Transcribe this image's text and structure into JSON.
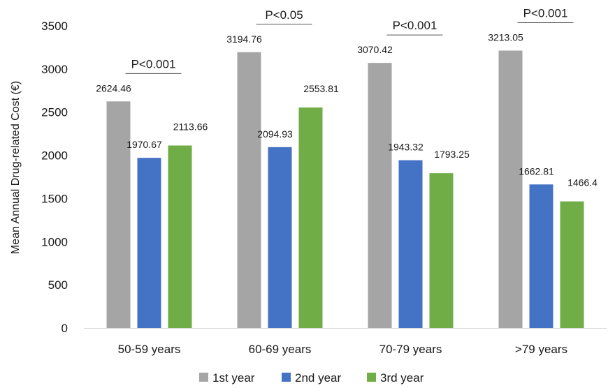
{
  "chart_data": {
    "type": "bar",
    "ylabel": "Mean Annual Drug-related Cost (€)",
    "ylim": [
      0,
      3500
    ],
    "yticks": [
      0,
      500,
      1000,
      1500,
      2000,
      2500,
      3000,
      3500
    ],
    "grid": false,
    "legend_position": "bottom",
    "categories": [
      "50-59 years",
      "60-69 years",
      "70-79 years",
      ">79 years"
    ],
    "series": [
      {
        "name": "1st year",
        "color": "#a5a5a5",
        "values": [
          2624.46,
          3194.76,
          3070.42,
          3213.05
        ],
        "labels": [
          "2624.46",
          "3194.76",
          "3070.42",
          "3213.05"
        ]
      },
      {
        "name": "2nd year",
        "color": "#4472c4",
        "values": [
          1970.67,
          2094.93,
          1943.32,
          1662.81
        ],
        "labels": [
          "1970.67",
          "2094.93",
          "1943.32",
          "1662.81"
        ]
      },
      {
        "name": "3rd year",
        "color": "#70ad47",
        "values": [
          2113.66,
          2553.81,
          1793.25,
          1466.4
        ],
        "labels": [
          "2113.66",
          "2553.81",
          "1793.25",
          "1466.4"
        ]
      }
    ],
    "annotations": [
      {
        "category": "50-59 years",
        "text": "P<0.001"
      },
      {
        "category": "60-69 years",
        "text": "P<0.05"
      },
      {
        "category": "70-79 years",
        "text": "P<0.001"
      },
      {
        "category": ">79 years",
        "text": "P<0.001"
      }
    ]
  }
}
